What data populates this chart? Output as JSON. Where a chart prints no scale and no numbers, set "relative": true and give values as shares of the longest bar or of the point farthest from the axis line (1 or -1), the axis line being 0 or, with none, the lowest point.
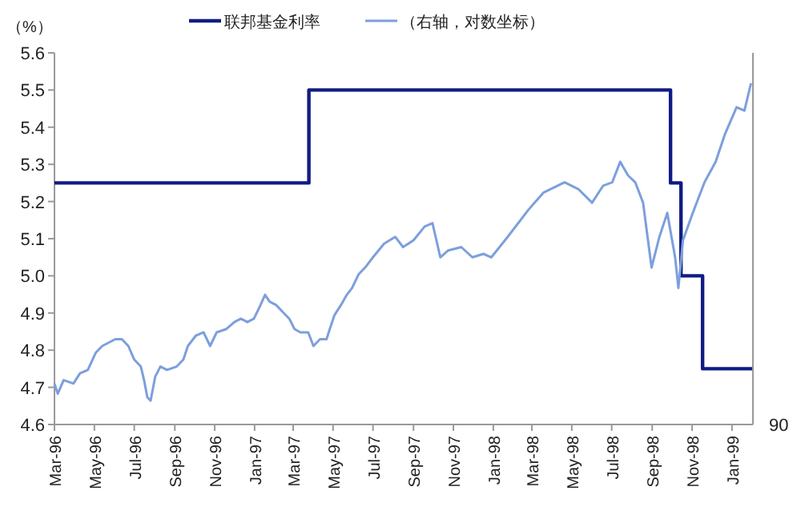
{
  "chart_data": [
    {
      "type": "step",
      "ylabel": "（%）",
      "legend": "top",
      "marker": "none",
      "line_style": "solid",
      "xlim": [
        "1996-03-01",
        "1999-02-02"
      ],
      "ylim": [
        4.6,
        5.6
      ],
      "yticks": [
        4.6,
        4.7,
        4.8,
        4.9,
        {
          "value": 5,
          "label": "5.0"
        },
        5.1,
        5.2,
        5.3,
        5.4,
        5.5,
        5.6
      ],
      "xticks": [
        {
          "value": "1996-03-01",
          "label": "Mar-96"
        },
        {
          "value": "1996-05-01",
          "label": "May-96"
        },
        {
          "value": "1996-07-01",
          "label": "Jul-96"
        },
        {
          "value": "1996-09-01",
          "label": "Sep-96"
        },
        {
          "value": "1996-11-01",
          "label": "Nov-96"
        },
        {
          "value": "1997-01-01",
          "label": "Jan-97"
        },
        {
          "value": "1997-03-01",
          "label": "Mar-97"
        },
        {
          "value": "1997-05-01",
          "label": "May-97"
        },
        {
          "value": "1997-07-01",
          "label": "Jul-97"
        },
        {
          "value": "1997-09-01",
          "label": "Sep-97"
        },
        {
          "value": "1997-11-01",
          "label": "Nov-97"
        },
        {
          "value": "1998-01-01",
          "label": "Jan-98"
        },
        {
          "value": "1998-03-01",
          "label": "Mar-98"
        },
        {
          "value": "1998-05-01",
          "label": "May-98"
        },
        {
          "value": "1998-07-01",
          "label": "Jul-98"
        },
        {
          "value": "1998-09-01",
          "label": "Sep-98"
        },
        {
          "value": "1998-11-01",
          "label": "Nov-98"
        },
        {
          "value": "1999-01-01",
          "label": "Jan-99"
        }
      ],
      "series": [
        {
          "name": "联邦基金利率",
          "color": "#101c84",
          "x": [
            "1996-03-01",
            "1997-03-25",
            "1998-09-29",
            "1998-10-15",
            "1998-11-17",
            "1999-02-02"
          ],
          "values": [
            5.25,
            5.5,
            5.25,
            5.0,
            4.75,
            4.75
          ]
        }
      ]
    },
    {
      "type": "line",
      "relative": true,
      "legend": "top",
      "marker": "none",
      "line_style": "solid",
      "xlim": [
        "1996-03-01",
        "1999-02-02"
      ],
      "annotations": [
        "90"
      ],
      "series": [
        {
          "name": "（右轴，对数坐标）",
          "color": "#7d9fdc",
          "axis": "y2",
          "x": [
            "1996-03-01",
            "1996-03-06",
            "1996-03-15",
            "1996-03-30",
            "1996-04-09",
            "1996-04-21",
            "1996-05-03",
            "1996-05-13",
            "1996-05-23",
            "1996-06-02",
            "1996-06-12",
            "1996-06-22",
            "1996-07-01",
            "1996-07-11",
            "1996-07-16",
            "1996-07-21",
            "1996-07-26",
            "1996-08-02",
            "1996-08-10",
            "1996-08-20",
            "1996-09-04",
            "1996-09-14",
            "1996-09-21",
            "1996-10-03",
            "1996-10-15",
            "1996-10-25",
            "1996-11-04",
            "1996-11-19",
            "1996-12-01",
            "1996-12-11",
            "1996-12-21",
            "1996-12-31",
            "1997-01-10",
            "1997-01-17",
            "1997-01-24",
            "1997-02-03",
            "1997-02-13",
            "1997-02-23",
            "1997-03-03",
            "1997-03-12",
            "1997-03-24",
            "1997-04-01",
            "1997-04-11",
            "1997-04-21",
            "1997-04-26",
            "1997-05-03",
            "1997-05-13",
            "1997-05-22",
            "1997-05-30",
            "1997-06-09",
            "1997-06-19",
            "1997-07-01",
            "1997-07-18",
            "1997-08-04",
            "1997-08-16",
            "1997-09-01",
            "1997-09-18",
            "1997-09-30",
            "1997-10-12",
            "1997-10-24",
            "1997-11-13",
            "1997-11-30",
            "1997-12-17",
            "1997-12-29",
            "1998-01-23",
            "1998-02-24",
            "1998-03-19",
            "1998-04-20",
            "1998-05-11",
            "1998-06-01",
            "1998-06-18",
            "1998-07-02",
            "1998-07-14",
            "1998-07-26",
            "1998-08-06",
            "1998-08-18",
            "1998-08-31",
            "1998-09-12",
            "1998-09-24",
            "1998-10-06",
            "1998-10-11",
            "1998-10-18",
            "1998-11-02",
            "1998-11-20",
            "1998-12-07",
            "1998-12-21",
            "1999-01-08",
            "1999-01-20",
            "1999-01-30"
          ],
          "values": [
            0.12,
            0.09,
            0.13,
            0.12,
            0.15,
            0.16,
            0.21,
            0.23,
            0.24,
            0.25,
            0.25,
            0.23,
            0.19,
            0.17,
            0.13,
            0.08,
            0.07,
            0.14,
            0.17,
            0.16,
            0.17,
            0.19,
            0.23,
            0.26,
            0.27,
            0.23,
            0.27,
            0.28,
            0.3,
            0.31,
            0.3,
            0.31,
            0.35,
            0.38,
            0.36,
            0.35,
            0.33,
            0.31,
            0.28,
            0.27,
            0.27,
            0.23,
            0.25,
            0.25,
            0.28,
            0.32,
            0.35,
            0.38,
            0.4,
            0.44,
            0.46,
            0.49,
            0.53,
            0.55,
            0.52,
            0.54,
            0.58,
            0.59,
            0.49,
            0.51,
            0.52,
            0.49,
            0.5,
            0.49,
            0.55,
            0.63,
            0.68,
            0.71,
            0.69,
            0.65,
            0.7,
            0.71,
            0.77,
            0.73,
            0.71,
            0.65,
            0.46,
            0.55,
            0.62,
            0.49,
            0.4,
            0.54,
            0.62,
            0.71,
            0.77,
            0.85,
            0.93,
            0.92,
            1.0
          ]
        }
      ]
    }
  ]
}
